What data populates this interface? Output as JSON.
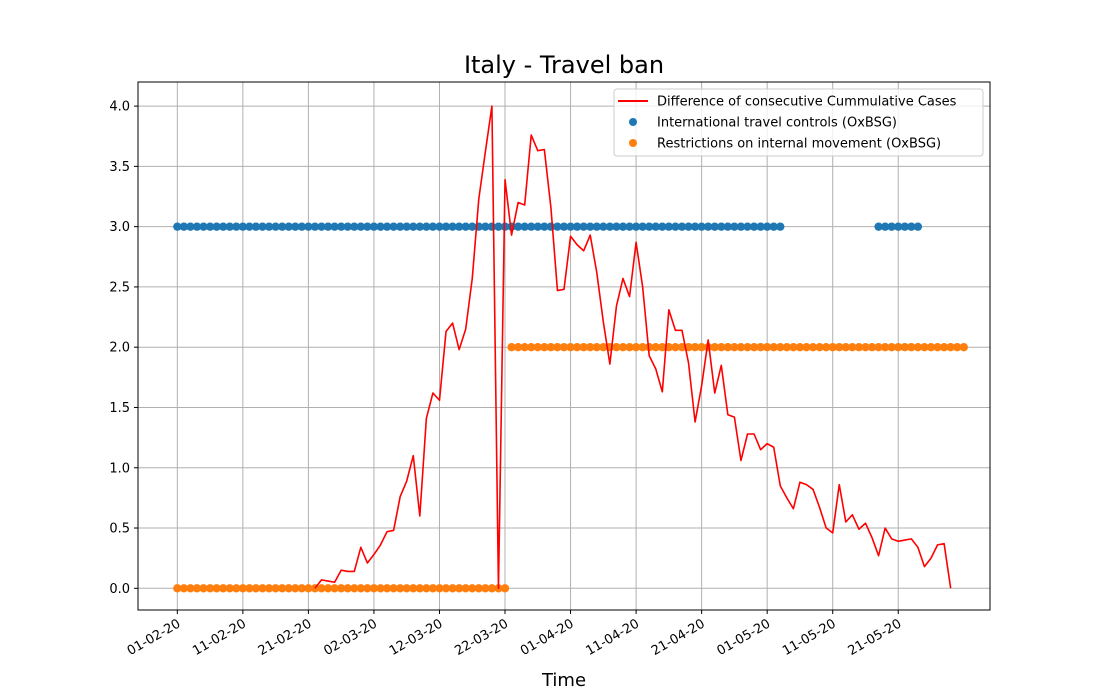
{
  "chart_data": {
    "type": "line",
    "title": "Italy - Travel ban",
    "xlabel": "Time",
    "ylabel": "",
    "x_start": "01-02-20",
    "x_end": "31-05-20",
    "xlim": [
      "26-01-20",
      "04-06-20"
    ],
    "ylim": [
      -0.18,
      4.2
    ],
    "x_ticks": [
      "01-02-20",
      "11-02-20",
      "21-02-20",
      "02-03-20",
      "12-03-20",
      "22-03-20",
      "01-04-20",
      "11-04-20",
      "21-04-20",
      "01-05-20",
      "11-05-20",
      "21-05-20"
    ],
    "y_ticks": [
      0.0,
      0.5,
      1.0,
      1.5,
      2.0,
      2.5,
      3.0,
      3.5,
      4.0
    ],
    "y_tick_labels": [
      "0.0",
      "0.5",
      "1.0",
      "1.5",
      "2.0",
      "2.5",
      "3.0",
      "3.5",
      "4.0"
    ],
    "grid": true,
    "legend_position": "top-right",
    "series": [
      {
        "name": "Difference of consecutive Cummulative Cases",
        "kind": "line",
        "color": "#ff0000",
        "points": [
          [
            "22-02-20",
            0.0
          ],
          [
            "23-02-20",
            0.07
          ],
          [
            "24-02-20",
            0.06
          ],
          [
            "25-02-20",
            0.05
          ],
          [
            "26-02-20",
            0.15
          ],
          [
            "27-02-20",
            0.14
          ],
          [
            "28-02-20",
            0.14
          ],
          [
            "29-02-20",
            0.34
          ],
          [
            "01-03-20",
            0.21
          ],
          [
            "02-03-20",
            0.28
          ],
          [
            "03-03-20",
            0.36
          ],
          [
            "04-03-20",
            0.47
          ],
          [
            "05-03-20",
            0.48
          ],
          [
            "06-03-20",
            0.76
          ],
          [
            "07-03-20",
            0.89
          ],
          [
            "08-03-20",
            1.1
          ],
          [
            "09-03-20",
            0.6
          ],
          [
            "10-03-20",
            1.41
          ],
          [
            "11-03-20",
            1.62
          ],
          [
            "12-03-20",
            1.56
          ],
          [
            "13-03-20",
            2.13
          ],
          [
            "14-03-20",
            2.2
          ],
          [
            "15-03-20",
            1.98
          ],
          [
            "16-03-20",
            2.15
          ],
          [
            "17-03-20",
            2.57
          ],
          [
            "18-03-20",
            3.23
          ],
          [
            "19-03-20",
            3.62
          ],
          [
            "20-03-20",
            4.0
          ],
          [
            "21-03-20",
            0.0
          ],
          [
            "22-03-20",
            3.39
          ],
          [
            "23-03-20",
            2.93
          ],
          [
            "24-03-20",
            3.2
          ],
          [
            "25-03-20",
            3.18
          ],
          [
            "26-03-20",
            3.76
          ],
          [
            "27-03-20",
            3.63
          ],
          [
            "28-03-20",
            3.64
          ],
          [
            "29-03-20",
            3.16
          ],
          [
            "30-03-20",
            2.47
          ],
          [
            "31-03-20",
            2.48
          ],
          [
            "01-04-20",
            2.92
          ],
          [
            "02-04-20",
            2.85
          ],
          [
            "03-04-20",
            2.8
          ],
          [
            "04-04-20",
            2.93
          ],
          [
            "05-04-20",
            2.62
          ],
          [
            "06-04-20",
            2.21
          ],
          [
            "07-04-20",
            1.86
          ],
          [
            "08-04-20",
            2.34
          ],
          [
            "09-04-20",
            2.57
          ],
          [
            "10-04-20",
            2.42
          ],
          [
            "11-04-20",
            2.87
          ],
          [
            "12-04-20",
            2.5
          ],
          [
            "13-04-20",
            1.93
          ],
          [
            "14-04-20",
            1.82
          ],
          [
            "15-04-20",
            1.63
          ],
          [
            "16-04-20",
            2.31
          ],
          [
            "17-04-20",
            2.14
          ],
          [
            "18-04-20",
            2.14
          ],
          [
            "19-04-20",
            1.87
          ],
          [
            "20-04-20",
            1.38
          ],
          [
            "21-04-20",
            1.68
          ],
          [
            "22-04-20",
            2.06
          ],
          [
            "23-04-20",
            1.62
          ],
          [
            "24-04-20",
            1.85
          ],
          [
            "25-04-20",
            1.44
          ],
          [
            "26-04-20",
            1.42
          ],
          [
            "27-04-20",
            1.06
          ],
          [
            "28-04-20",
            1.28
          ],
          [
            "29-04-20",
            1.28
          ],
          [
            "30-04-20",
            1.15
          ],
          [
            "01-05-20",
            1.2
          ],
          [
            "02-05-20",
            1.17
          ],
          [
            "03-05-20",
            0.85
          ],
          [
            "04-05-20",
            0.75
          ],
          [
            "05-05-20",
            0.66
          ],
          [
            "06-05-20",
            0.88
          ],
          [
            "07-05-20",
            0.86
          ],
          [
            "08-05-20",
            0.82
          ],
          [
            "09-05-20",
            0.67
          ],
          [
            "10-05-20",
            0.5
          ],
          [
            "11-05-20",
            0.46
          ],
          [
            "12-05-20",
            0.86
          ],
          [
            "13-05-20",
            0.55
          ],
          [
            "14-05-20",
            0.61
          ],
          [
            "15-05-20",
            0.49
          ],
          [
            "16-05-20",
            0.54
          ],
          [
            "17-05-20",
            0.42
          ],
          [
            "18-05-20",
            0.27
          ],
          [
            "19-05-20",
            0.5
          ],
          [
            "20-05-20",
            0.41
          ],
          [
            "21-05-20",
            0.39
          ],
          [
            "22-05-20",
            0.4
          ],
          [
            "23-05-20",
            0.41
          ],
          [
            "24-05-20",
            0.34
          ],
          [
            "25-05-20",
            0.18
          ],
          [
            "26-05-20",
            0.25
          ],
          [
            "27-05-20",
            0.36
          ],
          [
            "28-05-20",
            0.37
          ],
          [
            "29-05-20",
            0.0
          ]
        ]
      },
      {
        "name": "International travel controls (OxBSG)",
        "kind": "scatter",
        "color": "#1f77b4",
        "segments": [
          {
            "from": "01-02-20",
            "to": "03-05-20",
            "value": 3.0
          },
          {
            "from": "18-05-20",
            "to": "24-05-20",
            "value": 3.0
          }
        ]
      },
      {
        "name": "Restrictions on internal movement (OxBSG)",
        "kind": "scatter",
        "color": "#ff7f0e",
        "segments": [
          {
            "from": "01-02-20",
            "to": "22-03-20",
            "value": 0.0
          },
          {
            "from": "23-03-20",
            "to": "31-05-20",
            "value": 2.0
          }
        ]
      }
    ]
  }
}
